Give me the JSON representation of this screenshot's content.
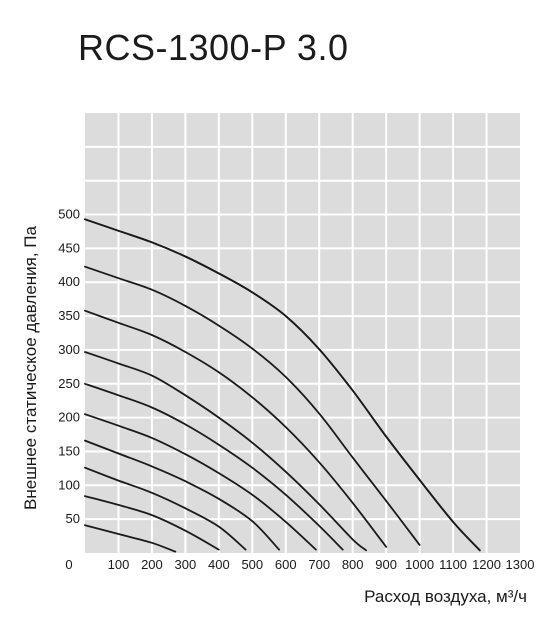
{
  "title": "RCS-1300-P 3.0",
  "chart_data": {
    "type": "line",
    "title": "RCS-1300-P 3.0",
    "xlabel": "Расход воздуха, м³/ч",
    "ylabel": "Внешнее статическое давления, Па",
    "xlim": [
      0,
      1300
    ],
    "ylim": [
      0,
      500
    ],
    "grid_ylim": [
      0,
      650
    ],
    "x_ticks": [
      100,
      200,
      300,
      400,
      500,
      600,
      700,
      800,
      900,
      1000,
      1100,
      1200,
      1300
    ],
    "y_ticks": [
      50,
      100,
      150,
      200,
      250,
      300,
      350,
      400,
      450,
      500
    ],
    "x_tick_labels": [
      "100",
      "200",
      "300",
      "400",
      "500",
      "600",
      "700",
      "800",
      "900",
      "1000",
      "1100",
      "1200",
      "1300"
    ],
    "y_tick_labels": [
      "50",
      "100",
      "150",
      "200",
      "250",
      "300",
      "350",
      "400",
      "450",
      "500"
    ],
    "origin_label": "0",
    "grid": true,
    "grid_background": "#dcdcdc",
    "grid_line_color": "#ffffff",
    "line_color": "#1a1a1a",
    "series": [
      {
        "points": [
          [
            0,
            41
          ],
          [
            100,
            28
          ],
          [
            200,
            15
          ],
          [
            270,
            2
          ]
        ]
      },
      {
        "points": [
          [
            0,
            84
          ],
          [
            100,
            71
          ],
          [
            200,
            56
          ],
          [
            300,
            33
          ],
          [
            400,
            5
          ]
        ]
      },
      {
        "points": [
          [
            0,
            126
          ],
          [
            100,
            107
          ],
          [
            200,
            89
          ],
          [
            300,
            66
          ],
          [
            400,
            39
          ],
          [
            480,
            5
          ]
        ]
      },
      {
        "points": [
          [
            0,
            166
          ],
          [
            100,
            147
          ],
          [
            200,
            128
          ],
          [
            300,
            106
          ],
          [
            400,
            80
          ],
          [
            500,
            47
          ],
          [
            580,
            5
          ]
        ]
      },
      {
        "points": [
          [
            0,
            205
          ],
          [
            100,
            188
          ],
          [
            200,
            170
          ],
          [
            300,
            146
          ],
          [
            400,
            118
          ],
          [
            500,
            86
          ],
          [
            600,
            46
          ],
          [
            690,
            5
          ]
        ]
      },
      {
        "points": [
          [
            0,
            250
          ],
          [
            100,
            233
          ],
          [
            200,
            215
          ],
          [
            300,
            190
          ],
          [
            400,
            160
          ],
          [
            500,
            126
          ],
          [
            600,
            86
          ],
          [
            700,
            40
          ],
          [
            770,
            5
          ]
        ]
      },
      {
        "points": [
          [
            0,
            297
          ],
          [
            100,
            280
          ],
          [
            200,
            262
          ],
          [
            300,
            233
          ],
          [
            400,
            200
          ],
          [
            500,
            163
          ],
          [
            600,
            120
          ],
          [
            700,
            72
          ],
          [
            800,
            20
          ],
          [
            840,
            4
          ]
        ]
      },
      {
        "points": [
          [
            0,
            358
          ],
          [
            100,
            340
          ],
          [
            200,
            322
          ],
          [
            300,
            297
          ],
          [
            400,
            267
          ],
          [
            500,
            230
          ],
          [
            600,
            186
          ],
          [
            700,
            134
          ],
          [
            800,
            74
          ],
          [
            900,
            9
          ]
        ]
      },
      {
        "points": [
          [
            0,
            423
          ],
          [
            100,
            406
          ],
          [
            200,
            389
          ],
          [
            300,
            365
          ],
          [
            400,
            336
          ],
          [
            500,
            302
          ],
          [
            600,
            260
          ],
          [
            700,
            206
          ],
          [
            800,
            141
          ],
          [
            900,
            77
          ],
          [
            1000,
            12
          ]
        ]
      },
      {
        "points": [
          [
            0,
            493
          ],
          [
            100,
            476
          ],
          [
            200,
            459
          ],
          [
            300,
            438
          ],
          [
            400,
            413
          ],
          [
            500,
            385
          ],
          [
            600,
            350
          ],
          [
            700,
            301
          ],
          [
            800,
            240
          ],
          [
            900,
            172
          ],
          [
            1000,
            108
          ],
          [
            1100,
            46
          ],
          [
            1180,
            4
          ]
        ]
      },
      {
        "points": [
          [
            0,
            493
          ],
          [
            100,
            476
          ],
          [
            200,
            459
          ],
          [
            300,
            438
          ],
          [
            400,
            413
          ],
          [
            500,
            385
          ],
          [
            600,
            350
          ],
          [
            700,
            301
          ],
          [
            800,
            240
          ],
          [
            900,
            172
          ],
          [
            1000,
            108
          ],
          [
            1100,
            46
          ],
          [
            1180,
            4
          ]
        ]
      }
    ]
  }
}
